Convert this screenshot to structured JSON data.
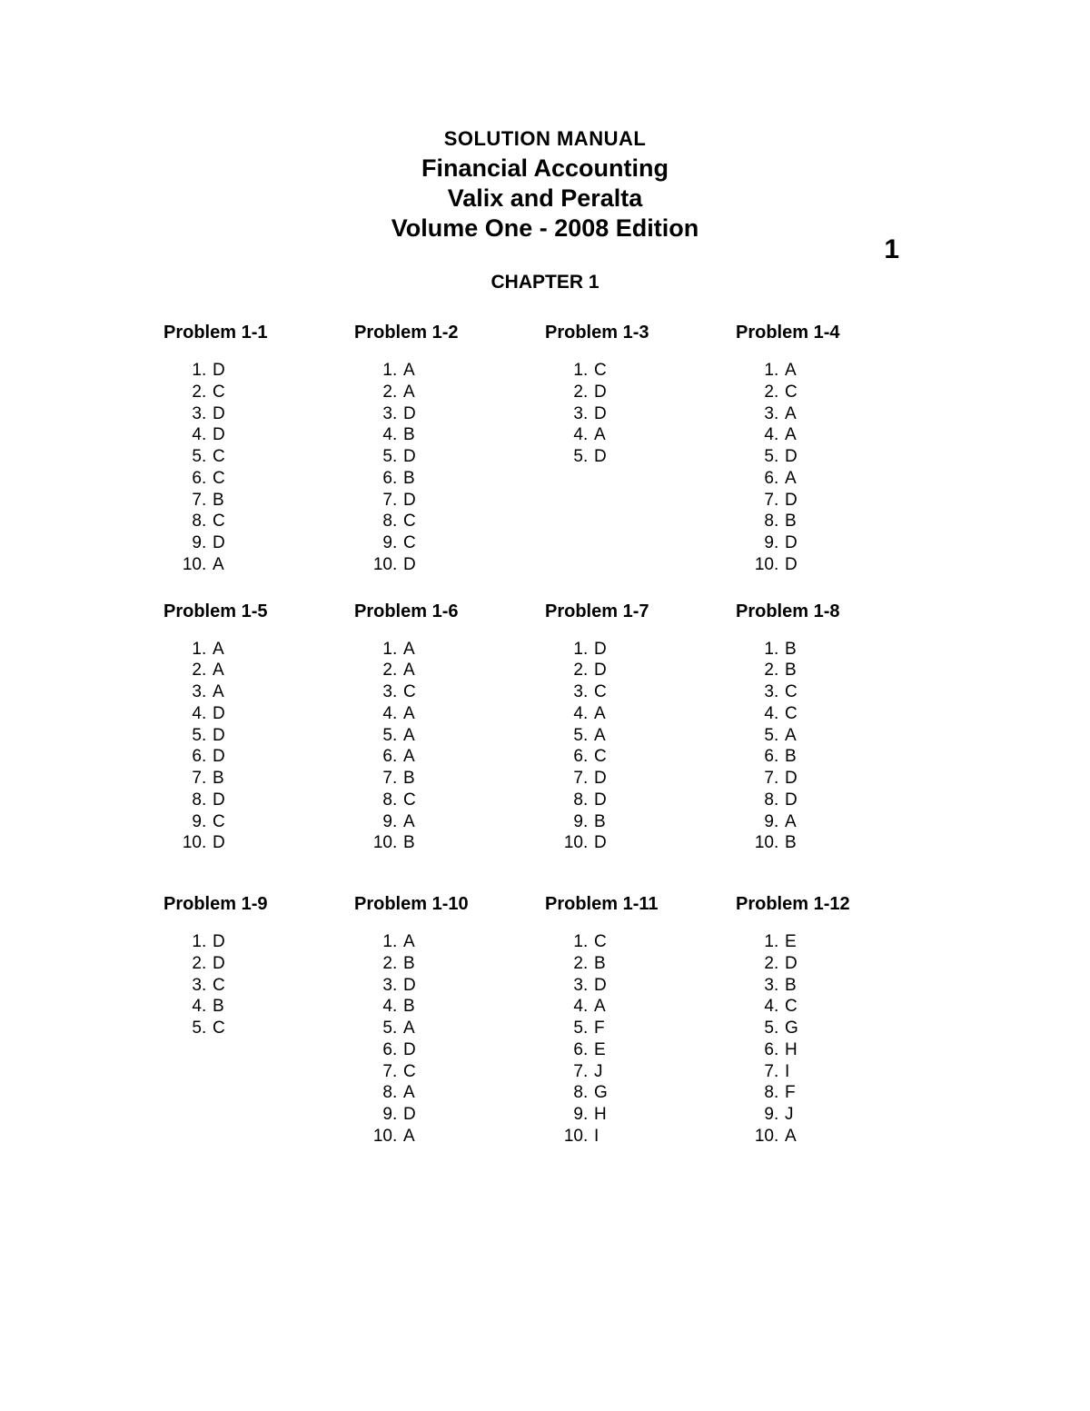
{
  "header": {
    "line1": "SOLUTION MANUAL",
    "line2": "Financial Accounting",
    "line3": "Valix and Peralta",
    "line4": "Volume One - 2008 Edition"
  },
  "page_number": "1",
  "chapter_title": "CHAPTER 1",
  "rows": [
    [
      {
        "title": "Problem 1-1",
        "answers": [
          "D",
          "C",
          "D",
          "D",
          "C",
          "C",
          "B",
          "C",
          "D",
          "A"
        ]
      },
      {
        "title": "Problem 1-2",
        "answers": [
          "A",
          "A",
          "D",
          "B",
          "D",
          "B",
          "D",
          "C",
          "C",
          "D"
        ]
      },
      {
        "title": "Problem 1-3",
        "answers": [
          "C",
          "D",
          "D",
          "A",
          "D"
        ]
      },
      {
        "title": "Problem 1-4",
        "answers": [
          "A",
          "C",
          "A",
          "A",
          "D",
          "A",
          "D",
          "B",
          "D",
          "D"
        ]
      }
    ],
    [
      {
        "title": "Problem 1-5",
        "answers": [
          "A",
          "A",
          "A",
          "D",
          "D",
          "D",
          "B",
          "D",
          "C",
          "D"
        ]
      },
      {
        "title": "Problem 1-6",
        "answers": [
          "A",
          "A",
          "C",
          "A",
          "A",
          "A",
          "B",
          "C",
          "A",
          "B"
        ]
      },
      {
        "title": "Problem 1-7",
        "answers": [
          "D",
          "D",
          "C",
          "A",
          "A",
          "C",
          "D",
          "D",
          "B",
          "D"
        ]
      },
      {
        "title": "Problem 1-8",
        "answers": [
          "B",
          "B",
          "C",
          "C",
          "A",
          "B",
          "D",
          "D",
          "A",
          "B"
        ]
      }
    ],
    [
      {
        "title": "Problem 1-9",
        "answers": [
          "D",
          "D",
          "C",
          "B",
          "C"
        ]
      },
      {
        "title": "Problem 1-10",
        "answers": [
          "A",
          "B",
          "D",
          "B",
          "A",
          "D",
          "C",
          "A",
          "D",
          "A"
        ]
      },
      {
        "title": "Problem 1-11",
        "answers": [
          "C",
          "B",
          "D",
          "A",
          "F",
          "E",
          "J",
          "G",
          "H",
          "I"
        ]
      },
      {
        "title": "Problem 1-12",
        "answers": [
          "E",
          "D",
          "B",
          "C",
          "G",
          "H",
          "I",
          "F",
          "J",
          "A"
        ]
      }
    ]
  ],
  "styling": {
    "background_color": "#ffffff",
    "text_color": "#000000",
    "header_small_fontsize": 22,
    "header_large_fontsize": 27,
    "page_number_fontsize": 30,
    "chapter_fontsize": 21,
    "problem_title_fontsize": 20,
    "answer_fontsize": 19,
    "font_family": "Century Gothic"
  }
}
